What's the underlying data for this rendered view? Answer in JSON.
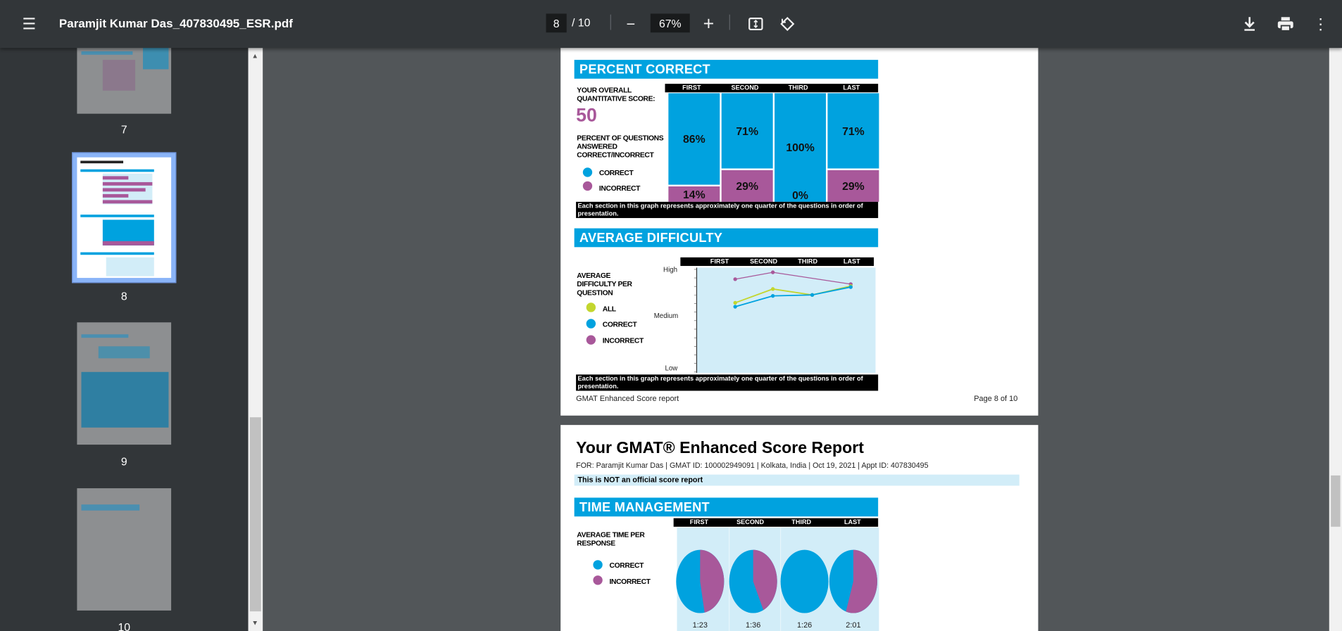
{
  "toolbar": {
    "title": "Paramjit Kumar Das_407830495_ESR.pdf",
    "current_page": "8",
    "total_pages": "/ 10",
    "zoom": "67%",
    "icons": [
      "menu-icon",
      "zoom-out-icon",
      "zoom-in-icon",
      "fit-page-icon",
      "rotate-icon",
      "download-icon",
      "print-icon",
      "more-icon"
    ]
  },
  "sidebar": {
    "thumbnails": [
      {
        "label": "7",
        "selected": false
      },
      {
        "label": "8",
        "selected": true
      },
      {
        "label": "9",
        "selected": false
      },
      {
        "label": "10",
        "selected": false
      }
    ]
  },
  "colors": {
    "accent": "#00a2df",
    "correct": "#00a2df",
    "incorrect": "#a8589a",
    "all": "#c3d62e",
    "panel": "#d2edf8"
  },
  "page8": {
    "percent_correct": {
      "title": "PERCENT CORRECT",
      "score_label": "YOUR OVERALL QUANTITATIVE SCORE:",
      "score": "50",
      "desc": "PERCENT OF QUESTIONS ANSWERED CORRECT/INCORRECT",
      "legend": {
        "correct": "CORRECT",
        "incorrect": "INCORRECT"
      },
      "columns": [
        "FIRST",
        "SECOND",
        "THIRD",
        "LAST"
      ],
      "footnote": "Each section in this graph represents approximately one quarter of the questions in order of presentation."
    },
    "average_difficulty": {
      "title": "AVERAGE DIFFICULTY",
      "desc": "AVERAGE DIFFICULTY PER QUESTION",
      "legend": {
        "all": "ALL",
        "correct": "CORRECT",
        "incorrect": "INCORRECT"
      },
      "columns": [
        "FIRST",
        "SECOND",
        "THIRD",
        "LAST"
      ],
      "y_labels": {
        "high": "High",
        "medium": "Medium",
        "low": "Low"
      },
      "footnote": "Each section in this graph represents approximately one quarter of the questions in order of presentation."
    },
    "footer_left": "GMAT Enhanced Score report",
    "footer_right": "Page 8 of 10"
  },
  "page9": {
    "title": "Your GMAT® Enhanced Score Report",
    "for_line": "FOR: Paramjit Kumar Das | GMAT ID: 100002949091 | Kolkata, India | Oct 19, 2021 | Appt ID: 407830495",
    "notice": "This is NOT an official score report",
    "time_management": {
      "title": "TIME MANAGEMENT",
      "desc": "AVERAGE TIME PER RESPONSE",
      "legend": {
        "correct": "CORRECT",
        "incorrect": "INCORRECT"
      },
      "columns": [
        "FIRST",
        "SECOND",
        "THIRD",
        "LAST"
      ]
    }
  },
  "chart_data": [
    {
      "type": "bar",
      "categories": [
        "FIRST",
        "SECOND",
        "THIRD",
        "LAST"
      ],
      "series": [
        {
          "name": "CORRECT",
          "values": [
            86,
            71,
            100,
            71
          ],
          "labels": [
            "86%",
            "71%",
            "100%",
            "71%"
          ]
        },
        {
          "name": "INCORRECT",
          "values": [
            14,
            29,
            0,
            29
          ],
          "labels": [
            "14%",
            "29%",
            "0%",
            "29%"
          ]
        }
      ],
      "stacked": true,
      "ylim": [
        0,
        100
      ]
    },
    {
      "type": "line",
      "categories": [
        "FIRST",
        "SECOND",
        "THIRD",
        "LAST"
      ],
      "y_ticks": [
        "Low",
        "Medium",
        "High"
      ],
      "ylim": [
        0,
        1
      ],
      "series": [
        {
          "name": "ALL",
          "values": [
            0.66,
            0.8,
            0.74,
            0.83
          ]
        },
        {
          "name": "CORRECT",
          "values": [
            0.62,
            0.73,
            0.74,
            0.82
          ]
        },
        {
          "name": "INCORRECT",
          "values": [
            0.9,
            0.97,
            null,
            0.85
          ]
        }
      ]
    },
    {
      "type": "pie",
      "categories": [
        "FIRST",
        "SECOND",
        "THIRD",
        "LAST"
      ],
      "times": [
        "1:23",
        "1:36",
        "1:26",
        "2:01"
      ],
      "incorrect_share": [
        0.47,
        0.43,
        0,
        0.55
      ]
    }
  ]
}
